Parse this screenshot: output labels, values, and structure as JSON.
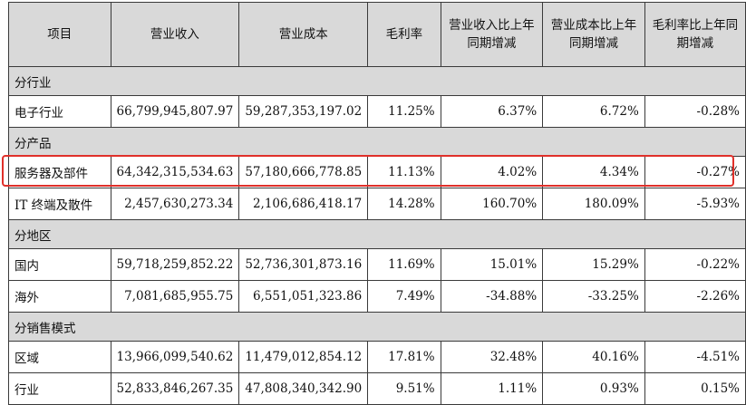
{
  "table": {
    "headers": [
      "项目",
      "营业收入",
      "营业成本",
      "毛利率",
      "营业收入比上年同期增减",
      "营业成本比上年同期增减",
      "毛利率比上年同期增减"
    ],
    "sections": [
      {
        "category": "分行业",
        "rows": [
          [
            "电子行业",
            "66,799,945,807.97",
            "59,287,353,197.02",
            "11.25%",
            "6.37%",
            "6.72%",
            "-0.28%"
          ]
        ]
      },
      {
        "category": "分产品",
        "rows": [
          [
            "服务器及部件",
            "64,342,315,534.63",
            "57,180,666,778.85",
            "11.13%",
            "4.02%",
            "4.34%",
            "-0.27%"
          ],
          [
            "IT 终端及散件",
            "2,457,630,273.34",
            "2,106,686,418.17",
            "14.28%",
            "160.70%",
            "180.09%",
            "-5.93%"
          ]
        ]
      },
      {
        "category": "分地区",
        "rows": [
          [
            "国内",
            "59,718,259,852.22",
            "52,736,301,873.16",
            "11.69%",
            "15.01%",
            "15.29%",
            "-0.22%"
          ],
          [
            "海外",
            "7,081,685,955.75",
            "6,551,051,323.86",
            "7.49%",
            "-34.88%",
            "-33.25%",
            "-2.26%"
          ]
        ]
      },
      {
        "category": "分销售模式",
        "rows": [
          [
            "区域",
            "13,966,099,540.62",
            "11,479,012,854.12",
            "17.81%",
            "32.48%",
            "40.16%",
            "-4.51%"
          ],
          [
            "行业",
            "52,833,846,267.35",
            "47,808,340,342.90",
            "9.51%",
            "1.11%",
            "0.93%",
            "0.15%"
          ]
        ]
      }
    ]
  },
  "highlight_color": "#e0302a"
}
